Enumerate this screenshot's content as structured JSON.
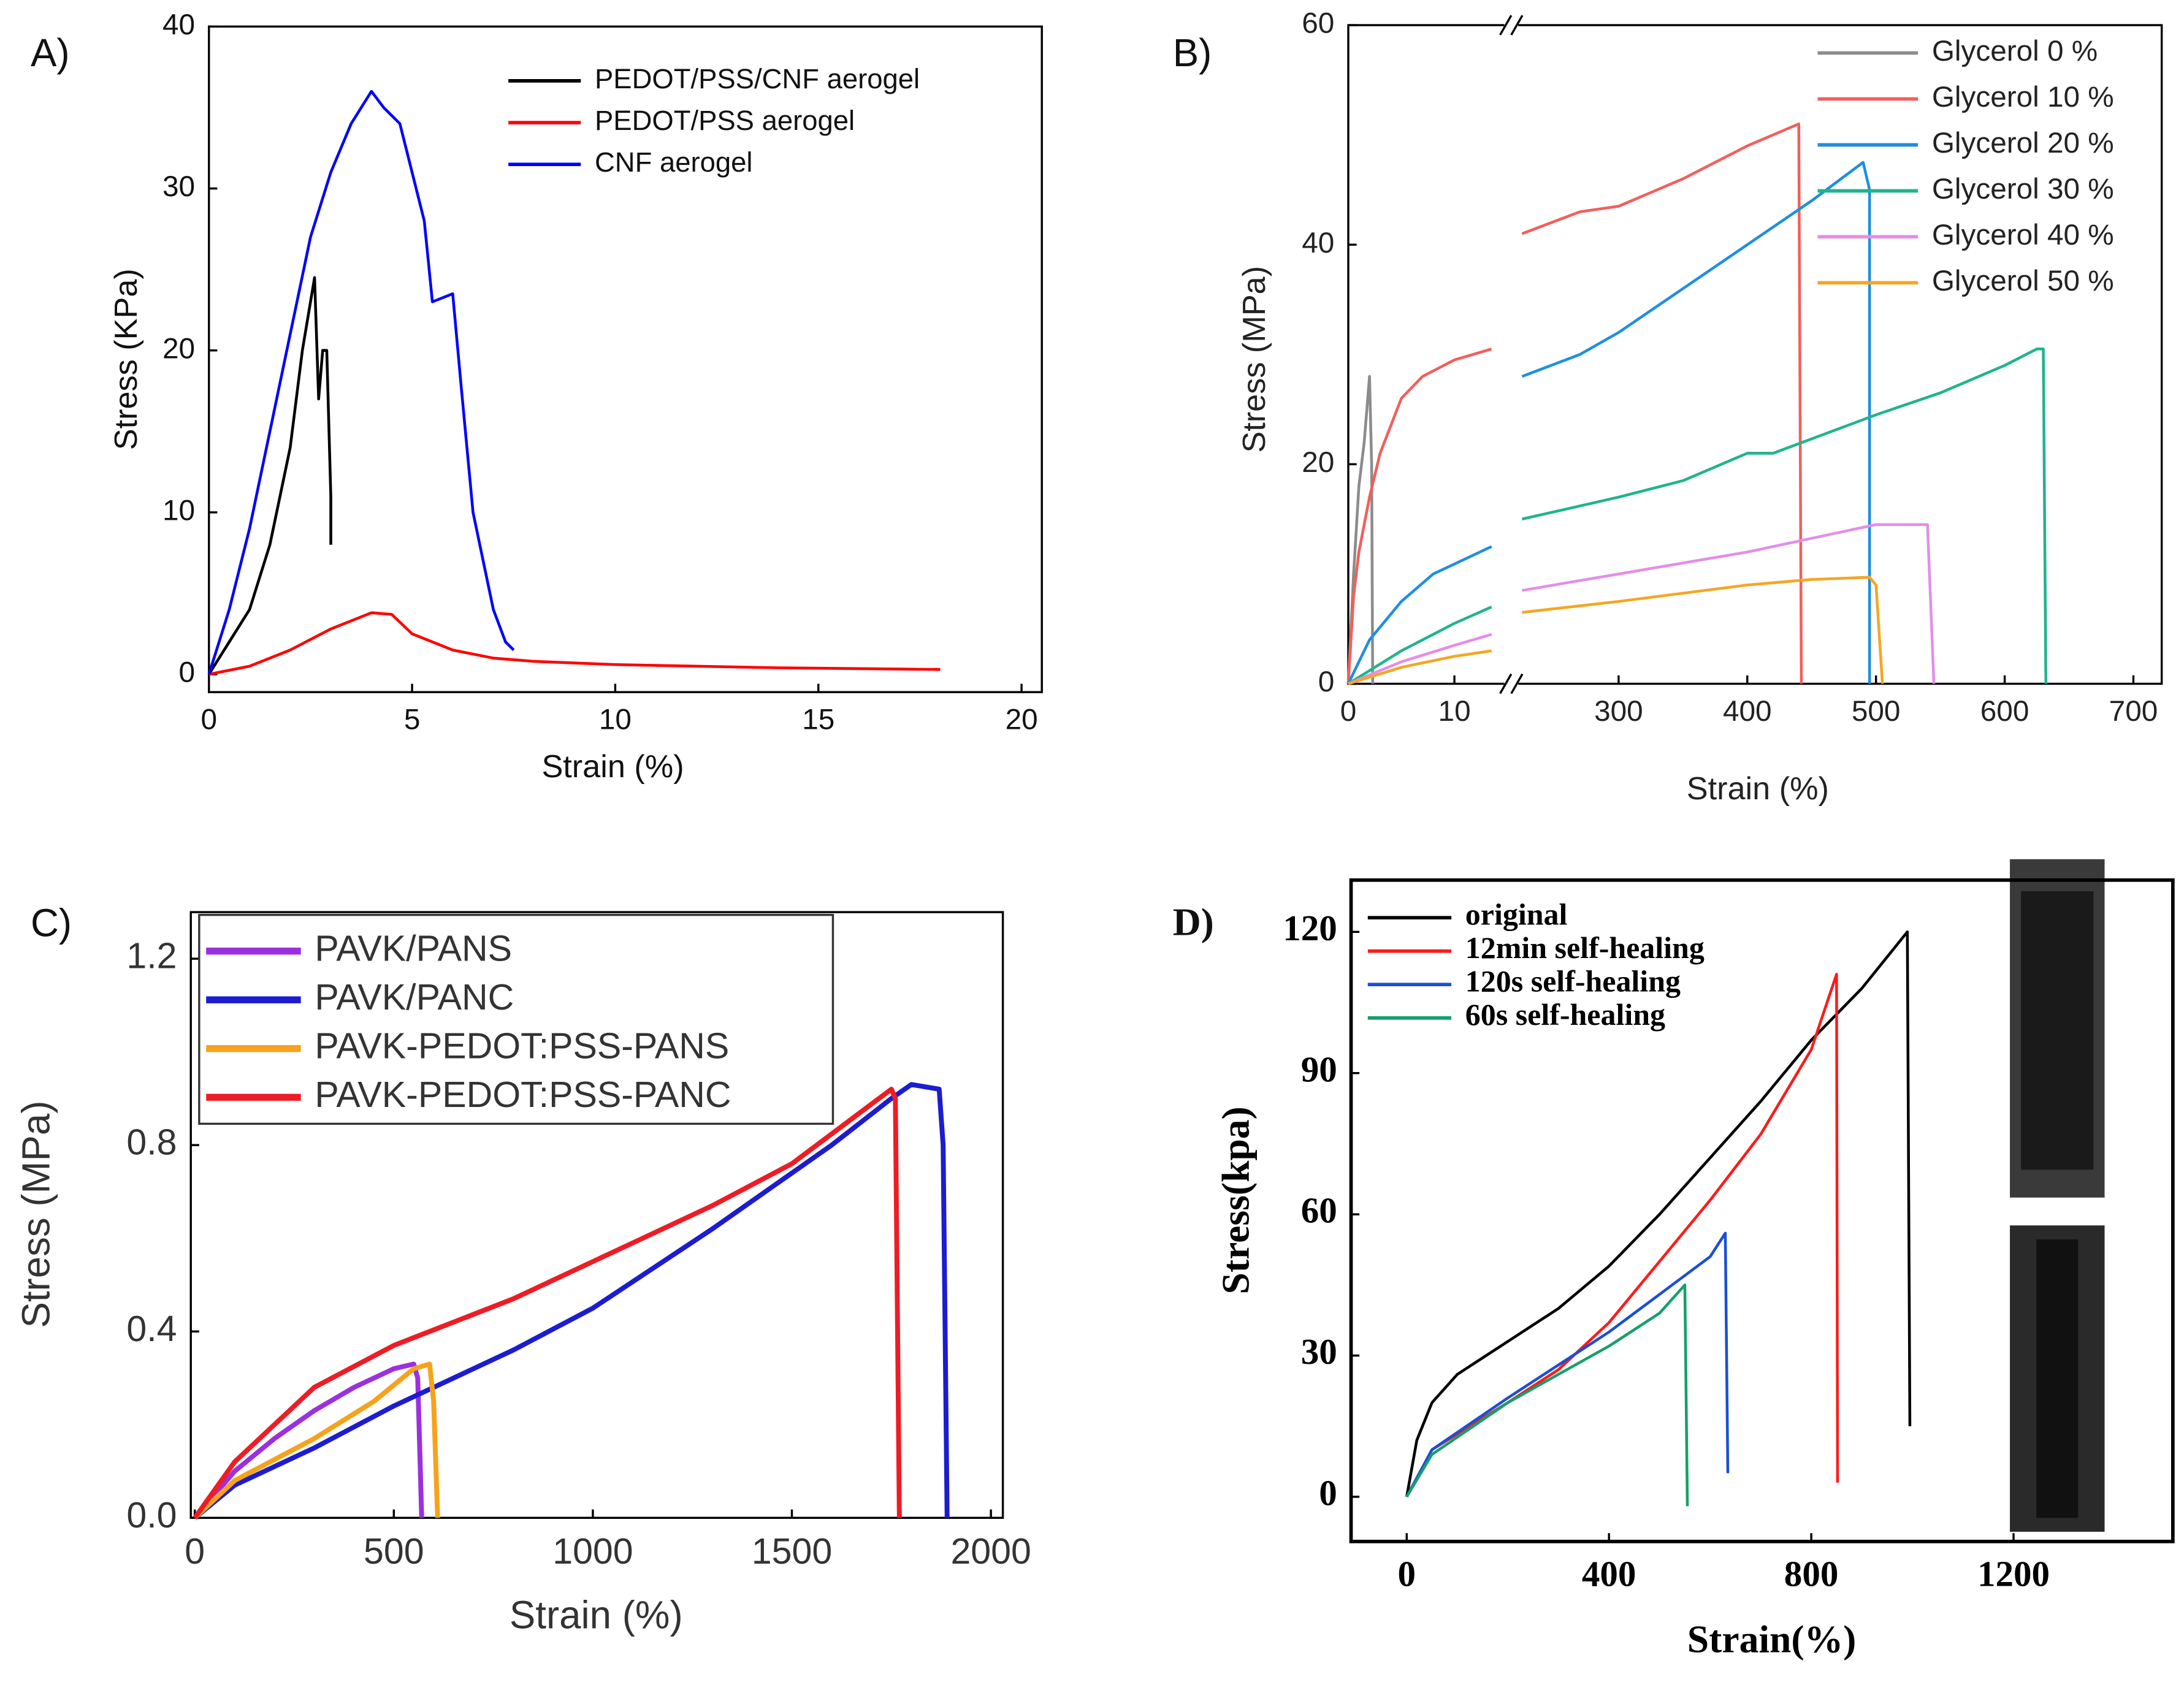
{
  "chart_data": [
    {
      "type": "line",
      "label": "A)",
      "xlabel": "Strain (%)",
      "ylabel": "Stress (KPa)",
      "xlim": [
        0,
        20.5
      ],
      "ylim": [
        -1.1,
        40
      ],
      "xticks": [
        0,
        5,
        10,
        15,
        20
      ],
      "yticks": [
        0,
        10,
        20,
        30,
        40
      ],
      "legend": "upper right",
      "series": [
        {
          "name": "PEDOT/PSS/CNF aerogel",
          "color": "#000000",
          "x": [
            0,
            0.5,
            1,
            1.5,
            2,
            2.3,
            2.5,
            2.6,
            2.7,
            2.8,
            2.9,
            3.0,
            3.0
          ],
          "values": [
            0,
            2,
            4,
            8,
            14,
            20,
            23,
            24.5,
            17,
            20,
            20,
            11,
            8
          ]
        },
        {
          "name": "PEDOT/PSS aerogel",
          "color": "#ff0000",
          "x": [
            0,
            1,
            2,
            3,
            4,
            4.5,
            5,
            6,
            7,
            8,
            10,
            14,
            18
          ],
          "values": [
            0,
            0.5,
            1.5,
            2.8,
            3.8,
            3.7,
            2.5,
            1.5,
            1.0,
            0.8,
            0.6,
            0.4,
            0.3
          ]
        },
        {
          "name": "CNF aerogel",
          "color": "#0000ff",
          "x": [
            0,
            0.5,
            1,
            1.5,
            2,
            2.5,
            3,
            3.5,
            4,
            4.3,
            4.7,
            5,
            5.3,
            5.5,
            6,
            6.2,
            6.5,
            7,
            7.3,
            7.5
          ],
          "values": [
            0,
            4,
            9,
            15,
            21,
            27,
            31,
            34,
            36,
            35,
            34,
            31,
            28,
            23,
            23.5,
            18,
            10,
            4,
            2,
            1.5
          ]
        }
      ]
    },
    {
      "type": "line",
      "label": "B)",
      "xlabel": "Strain (%)",
      "ylabel": "Stress (MPa)",
      "xlim": [
        0,
        722
      ],
      "x_break": [
        14.7,
        222
      ],
      "ylim": [
        0,
        60
      ],
      "xticks": [
        0,
        10,
        300,
        400,
        500,
        600,
        700
      ],
      "yticks": [
        0,
        20,
        40,
        60
      ],
      "legend": "upper right",
      "series": [
        {
          "name": "Glycerol 0 %",
          "color": "#8c8c8c",
          "x": [
            0,
            0.5,
            1,
            1.5,
            2,
            2.2,
            2.3
          ],
          "values": [
            0,
            10,
            18,
            22,
            28,
            20,
            0
          ]
        },
        {
          "name": "Glycerol 10 %",
          "color": "#f25f5c",
          "x": [
            0,
            0.5,
            1,
            2,
            3,
            5,
            7,
            10,
            13.5,
            225,
            270,
            300,
            350,
            400,
            440,
            442
          ],
          "values": [
            0,
            8,
            12,
            17,
            21,
            26,
            28,
            29.5,
            30.5,
            41,
            43,
            43.5,
            46,
            49,
            51,
            0
          ]
        },
        {
          "name": "Glycerol 20 %",
          "color": "#1f8fe0",
          "x": [
            0,
            2,
            5,
            8,
            13.5,
            225,
            270,
            300,
            350,
            400,
            450,
            490,
            495,
            495
          ],
          "values": [
            0,
            4,
            7.5,
            10,
            12.5,
            28,
            30,
            32,
            36,
            40,
            44,
            47.5,
            45,
            0
          ]
        },
        {
          "name": "Glycerol 30 %",
          "color": "#20b48c",
          "x": [
            0,
            5,
            10,
            13.5,
            225,
            300,
            350,
            400,
            420,
            500,
            550,
            600,
            625,
            630,
            632
          ],
          "values": [
            0,
            3,
            5.5,
            7,
            15,
            17,
            18.5,
            21,
            21,
            24.5,
            26.5,
            29,
            30.5,
            30.5,
            0
          ]
        },
        {
          "name": "Glycerol 40 %",
          "color": "#e38ee8",
          "x": [
            0,
            5,
            10,
            13.5,
            225,
            300,
            400,
            480,
            500,
            540,
            545
          ],
          "values": [
            0,
            2,
            3.5,
            4.5,
            8.5,
            10,
            12,
            14,
            14.5,
            14.5,
            0
          ]
        },
        {
          "name": "Glycerol 50 %",
          "color": "#f5a623",
          "x": [
            0,
            5,
            10,
            13.5,
            225,
            300,
            400,
            450,
            495,
            500,
            505
          ],
          "values": [
            0,
            1.5,
            2.5,
            3,
            6.5,
            7.5,
            9,
            9.5,
            9.7,
            9,
            0
          ]
        }
      ]
    },
    {
      "type": "line",
      "label": "C)",
      "xlabel": "Strain (%)",
      "ylabel": "Stress (MPa)",
      "xlim": [
        -10,
        2030
      ],
      "ylim": [
        0,
        1.3
      ],
      "xticks": [
        0,
        500,
        1000,
        1500,
        2000
      ],
      "yticks": [
        {
          "value": 0,
          "label": "0.0"
        },
        0.4,
        0.8,
        1.2
      ],
      "legend": "upper left",
      "series": [
        {
          "name": "PAVK/PANS",
          "color": "#9b30e0",
          "x": [
            0,
            100,
            200,
            300,
            400,
            500,
            550,
            560,
            570
          ],
          "values": [
            0,
            0.1,
            0.17,
            0.23,
            0.28,
            0.32,
            0.33,
            0.3,
            0
          ]
        },
        {
          "name": "PAVK/PANC",
          "color": "#1c1cd0",
          "x": [
            0,
            100,
            300,
            500,
            800,
            1000,
            1300,
            1600,
            1750,
            1800,
            1870,
            1880,
            1890
          ],
          "values": [
            0,
            0.07,
            0.15,
            0.24,
            0.36,
            0.45,
            0.62,
            0.8,
            0.9,
            0.93,
            0.92,
            0.8,
            0
          ]
        },
        {
          "name": "PAVK-PEDOT:PSS-PANS",
          "color": "#f7a21b",
          "x": [
            0,
            100,
            300,
            450,
            550,
            590,
            600,
            610
          ],
          "values": [
            0,
            0.08,
            0.17,
            0.25,
            0.32,
            0.33,
            0.25,
            0
          ]
        },
        {
          "name": "PAVK-PEDOT:PSS-PANC",
          "color": "#ee1c25",
          "x": [
            0,
            100,
            300,
            500,
            800,
            1000,
            1300,
            1500,
            1750,
            1760,
            1770
          ],
          "values": [
            0,
            0.12,
            0.28,
            0.37,
            0.47,
            0.55,
            0.67,
            0.76,
            0.92,
            0.9,
            0
          ]
        }
      ]
    },
    {
      "type": "line",
      "label": "D)",
      "xlabel": "Strain(%)",
      "ylabel": "Stress(kpa)",
      "xlim": [
        -110,
        1515
      ],
      "ylim": [
        -9.5,
        131
      ],
      "xticks": [
        0,
        400,
        800,
        1200
      ],
      "yticks": [
        0,
        30,
        60,
        90,
        120
      ],
      "legend": "upper left",
      "series": [
        {
          "name": "original",
          "color": "#000000",
          "x": [
            0,
            20,
            50,
            100,
            200,
            300,
            400,
            500,
            600,
            700,
            800,
            900,
            990,
            995
          ],
          "values": [
            0,
            12,
            20,
            26,
            33,
            40,
            49,
            60,
            72,
            84,
            97,
            108,
            120,
            15
          ]
        },
        {
          "name": "12min self-healing",
          "color": "#ff1a1a",
          "x": [
            0,
            50,
            200,
            300,
            400,
            500,
            600,
            700,
            800,
            850,
            852
          ],
          "values": [
            0,
            10,
            20,
            27,
            37,
            50,
            63,
            77,
            95,
            111,
            3
          ]
        },
        {
          "name": "120s self-healing",
          "color": "#1a4fd6",
          "x": [
            0,
            50,
            200,
            400,
            500,
            600,
            630,
            635
          ],
          "values": [
            0,
            10,
            21,
            35,
            43,
            51,
            56,
            5
          ]
        },
        {
          "name": "60s self-healing",
          "color": "#14a06a",
          "x": [
            0,
            50,
            200,
            400,
            500,
            550,
            555
          ],
          "values": [
            0,
            9,
            20,
            32,
            39,
            45,
            -2
          ]
        }
      ]
    }
  ]
}
